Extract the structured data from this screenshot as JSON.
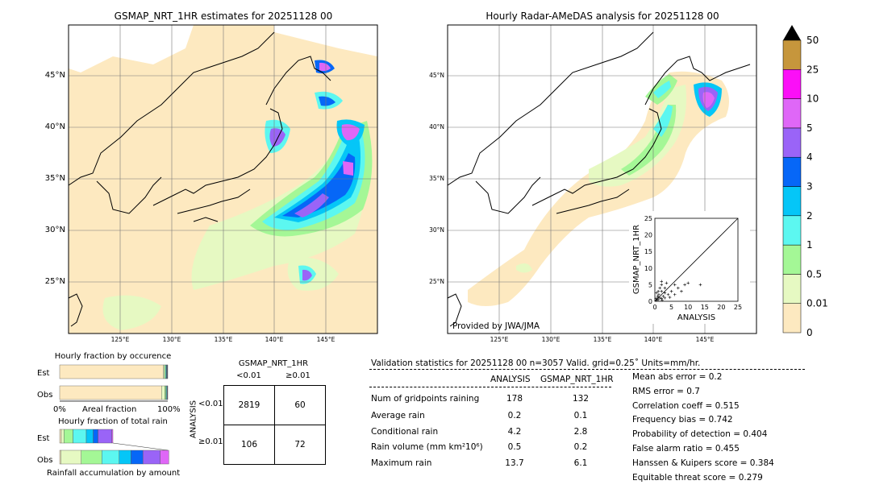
{
  "left_map": {
    "title": "GSMAP_NRT_1HR estimates for 20251128 00",
    "lat_labels": [
      "45°N",
      "40°N",
      "35°N",
      "30°N",
      "25°N"
    ],
    "lon_labels": [
      "125°E",
      "130°E",
      "135°E",
      "140°E",
      "145°E"
    ]
  },
  "right_map": {
    "title": "Hourly Radar-AMeDAS analysis for 20251128 00",
    "lat_labels": [
      "45°N",
      "40°N",
      "35°N",
      "30°N",
      "25°N"
    ],
    "lon_labels": [
      "125°E",
      "130°E",
      "135°E",
      "140°E",
      "145°E"
    ],
    "credit": "Provided by JWA/JMA"
  },
  "colorbar": {
    "labels": [
      "0",
      "0.01",
      "0.5",
      "1",
      "2",
      "3",
      "4",
      "5",
      "10",
      "25",
      "50"
    ],
    "colors": [
      "#fde9c0",
      "#e6f9c2",
      "#a4f796",
      "#5cf7f0",
      "#05c6f7",
      "#0667f7",
      "#9a64f7",
      "#df67f7",
      "#fb0ff7",
      "#c6963c"
    ],
    "over_color": "#000000"
  },
  "scatter": {
    "xlabel": "ANALYSIS",
    "ylabel": "GSMAP_NRT_1HR",
    "xticks": [
      "0",
      "5",
      "10",
      "15",
      "20",
      "25"
    ],
    "yticks": [
      "0",
      "5",
      "10",
      "15",
      "20",
      "25"
    ]
  },
  "occurrence": {
    "title": "Hourly fraction by occurence",
    "est_label": "Est",
    "obs_label": "Obs",
    "axis_left": "0%",
    "axis_mid": "Areal fraction",
    "axis_right": "100%"
  },
  "accumulation": {
    "title": "Hourly fraction of total rain",
    "est_label": "Est",
    "obs_label": "Obs",
    "footer": "Rainfall accumulation by amount"
  },
  "contingency": {
    "header": "GSMAP_NRT_1HR",
    "col_lt": "<0.01",
    "col_ge": "≥0.01",
    "row_title": "ANALYSIS",
    "row_lt": "<0.01",
    "row_ge": "≥0.01",
    "a": "2819",
    "b": "60",
    "c": "106",
    "d": "72"
  },
  "validation": {
    "header": "Validation statistics for 20251128 00  n=3057 Valid. grid=0.25˚ Units=mm/hr.",
    "col_analysis": "ANALYSIS",
    "col_gsmap": "GSMAP_NRT_1HR",
    "rows": [
      {
        "label": "Num of gridpoints raining",
        "analysis": "178",
        "gsmap": "132"
      },
      {
        "label": "Average rain",
        "analysis": "0.2",
        "gsmap": "0.1"
      },
      {
        "label": "Conditional rain",
        "analysis": "4.2",
        "gsmap": "2.8"
      },
      {
        "label": "Rain volume (mm km²10⁶)",
        "analysis": "0.5",
        "gsmap": "0.2"
      },
      {
        "label": "Maximum rain",
        "analysis": "13.7",
        "gsmap": "6.1"
      }
    ],
    "scores": [
      "Mean abs error =    0.2",
      "RMS error =    0.7",
      "Correlation coeff =  0.515",
      "Frequency bias =  0.742",
      "Probability of detection =  0.404",
      "False alarm ratio =  0.455",
      "Hanssen & Kuipers score =  0.384",
      "Equitable threat score =  0.279"
    ]
  },
  "chart_data": [
    {
      "type": "heatmap",
      "title": "GSMAP_NRT_1HR estimates for 20251128 00",
      "xlabel": "",
      "ylabel": "",
      "lon_range": [
        120,
        150
      ],
      "lat_range": [
        20,
        50
      ],
      "units": "mm/hr"
    },
    {
      "type": "heatmap",
      "title": "Hourly Radar-AMeDAS analysis for 20251128 00",
      "xlabel": "",
      "ylabel": "",
      "lon_range": [
        120,
        150
      ],
      "lat_range": [
        20,
        50
      ],
      "units": "mm/hr"
    },
    {
      "type": "scatter",
      "xlabel": "ANALYSIS",
      "ylabel": "GSMAP_NRT_1HR",
      "xlim": [
        0,
        25
      ],
      "ylim": [
        0,
        25
      ],
      "points": [
        [
          0.5,
          0.3
        ],
        [
          1,
          0.5
        ],
        [
          1.5,
          1
        ],
        [
          2,
          0.8
        ],
        [
          0.8,
          1.5
        ],
        [
          1.2,
          2
        ],
        [
          2.5,
          1.5
        ],
        [
          3,
          1
        ],
        [
          0.5,
          2.5
        ],
        [
          1,
          3
        ],
        [
          2,
          3
        ],
        [
          3,
          2.5
        ],
        [
          4,
          2
        ],
        [
          1.5,
          4
        ],
        [
          2,
          5
        ],
        [
          3,
          4
        ],
        [
          5,
          3
        ],
        [
          6,
          2
        ],
        [
          2,
          6
        ],
        [
          3.5,
          5.5
        ],
        [
          7,
          4
        ],
        [
          8,
          3
        ],
        [
          9,
          5
        ],
        [
          10,
          5.5
        ],
        [
          13.7,
          5
        ],
        [
          1,
          1
        ],
        [
          0.3,
          0.8
        ],
        [
          2.2,
          0.3
        ],
        [
          4.5,
          1.2
        ],
        [
          6,
          5
        ]
      ]
    },
    {
      "type": "bar",
      "title": "Hourly fraction by occurence",
      "categories": [
        "Est",
        "Obs"
      ],
      "series": [
        {
          "values": [
            0.957,
            0.942
          ]
        },
        {
          "values": [
            0.013,
            0.03
          ]
        },
        {
          "values": [
            0.01,
            0.012
          ]
        },
        {
          "values": [
            0.007,
            0.006
          ]
        },
        {
          "values": [
            0.005,
            0.004
          ]
        },
        {
          "values": [
            0.004,
            0.003
          ]
        },
        {
          "values": [
            0.002,
            0.002
          ]
        },
        {
          "values": [
            0.002,
            0.001
          ]
        }
      ]
    },
    {
      "type": "bar",
      "title": "Hourly fraction of total rain",
      "categories": [
        "Est",
        "Obs"
      ],
      "series": [
        {
          "values": [
            0.03,
            0.01
          ]
        },
        {
          "values": [
            0.05,
            0.19
          ]
        },
        {
          "values": [
            0.17,
            0.19
          ]
        },
        {
          "values": [
            0.25,
            0.16
          ]
        },
        {
          "values": [
            0.13,
            0.11
          ]
        },
        {
          "values": [
            0.09,
            0.11
          ]
        },
        {
          "values": [
            0.26,
            0.16
          ]
        },
        {
          "values": [
            0.02,
            0.08
          ]
        }
      ]
    }
  ]
}
